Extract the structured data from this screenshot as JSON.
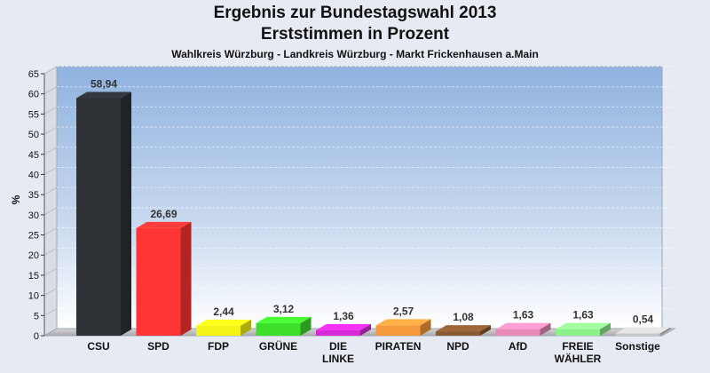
{
  "chart_data": {
    "type": "bar",
    "title": "Ergebnis zur Bundestagswahl 2013",
    "subtitle": "Erststimmen in Prozent",
    "caption": "Wahlkreis Würzburg - Landkreis Würzburg - Markt Frickenhausen a.Main",
    "ylabel": "%",
    "ylim": [
      0,
      65
    ],
    "yticks": [
      0,
      5,
      10,
      15,
      20,
      25,
      30,
      35,
      40,
      45,
      50,
      55,
      60,
      65
    ],
    "grid": true,
    "categories": [
      "CSU",
      "SPD",
      "FDP",
      "GRÜNE",
      "DIE LINKE",
      "PIRATEN",
      "NPD",
      "AfD",
      "FREIE WÄHLER",
      "Sonstige"
    ],
    "category_lines": [
      [
        "CSU"
      ],
      [
        "SPD"
      ],
      [
        "FDP"
      ],
      [
        "GRÜNE"
      ],
      [
        "DIE",
        "LINKE"
      ],
      [
        "PIRATEN"
      ],
      [
        "NPD"
      ],
      [
        "AfD"
      ],
      [
        "FREIE",
        "WÄHLER"
      ],
      [
        "Sonstige"
      ]
    ],
    "values": [
      58.94,
      26.69,
      2.44,
      3.12,
      1.36,
      2.57,
      1.08,
      1.63,
      1.63,
      0.54
    ],
    "value_labels": [
      "58,94",
      "26,69",
      "2,44",
      "3,12",
      "1,36",
      "2,57",
      "1,08",
      "1,63",
      "1,63",
      "0,54"
    ],
    "colors": [
      "#2e3136",
      "#ff3535",
      "#f4f416",
      "#3ede2c",
      "#d62ad6",
      "#f59a3c",
      "#8a5a32",
      "#e78bb8",
      "#8ef08a",
      "#c8c8c8"
    ]
  }
}
